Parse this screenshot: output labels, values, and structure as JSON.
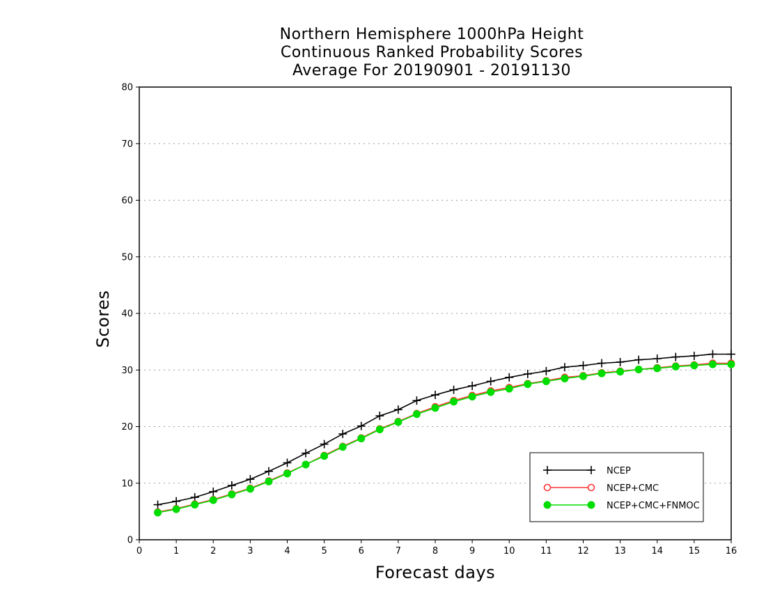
{
  "chart_data": {
    "type": "line",
    "title": [
      "Northern Hemisphere 1000hPa Height",
      "Continuous Ranked Probability Scores",
      "Average For 20190901 - 20191130"
    ],
    "xlabel": "Forecast days",
    "ylabel": "Scores",
    "xlim": [
      0,
      16
    ],
    "ylim": [
      0,
      80
    ],
    "xticks": [
      0,
      1,
      2,
      3,
      4,
      5,
      6,
      7,
      8,
      9,
      10,
      11,
      12,
      13,
      14,
      15,
      16
    ],
    "yticks": [
      0,
      10,
      20,
      30,
      40,
      50,
      60,
      70,
      80
    ],
    "grid": "horizontal dotted",
    "legend_position": "bottom-right",
    "x": [
      0.5,
      1,
      1.5,
      2,
      2.5,
      3,
      3.5,
      4,
      4.5,
      5,
      5.5,
      6,
      6.5,
      7,
      7.5,
      8,
      8.5,
      9,
      9.5,
      10,
      10.5,
      11,
      11.5,
      12,
      12.5,
      13,
      13.5,
      14,
      14.5,
      15,
      15.5,
      16
    ],
    "series": [
      {
        "name": "NCEP",
        "color": "#000000",
        "marker": "plus",
        "values": [
          6.2,
          6.8,
          7.5,
          8.5,
          9.6,
          10.7,
          12.1,
          13.6,
          15.3,
          16.9,
          18.7,
          20.1,
          21.9,
          23.0,
          24.6,
          25.6,
          26.5,
          27.2,
          28.0,
          28.7,
          29.3,
          29.8,
          30.5,
          30.8,
          31.2,
          31.4,
          31.8,
          32.0,
          32.3,
          32.5,
          32.8,
          32.8
        ]
      },
      {
        "name": "NCEP+CMC",
        "color": "#ff3333",
        "marker": "open-circle",
        "values": [
          4.9,
          5.5,
          6.3,
          7.1,
          8.1,
          9.1,
          10.4,
          11.8,
          13.3,
          14.9,
          16.5,
          18.0,
          19.6,
          20.9,
          22.3,
          23.5,
          24.6,
          25.5,
          26.3,
          26.9,
          27.6,
          28.1,
          28.7,
          29.0,
          29.5,
          29.8,
          30.1,
          30.4,
          30.7,
          30.9,
          31.2,
          31.2
        ]
      },
      {
        "name": "NCEP+CMC+FNMOC",
        "color": "#00dd00",
        "marker": "filled-circle",
        "values": [
          4.8,
          5.4,
          6.2,
          7.0,
          8.0,
          9.0,
          10.3,
          11.7,
          13.3,
          14.8,
          16.4,
          17.9,
          19.5,
          20.8,
          22.2,
          23.3,
          24.4,
          25.3,
          26.1,
          26.7,
          27.5,
          28.0,
          28.5,
          28.9,
          29.4,
          29.7,
          30.1,
          30.3,
          30.6,
          30.8,
          31.0,
          31.0
        ]
      }
    ]
  }
}
